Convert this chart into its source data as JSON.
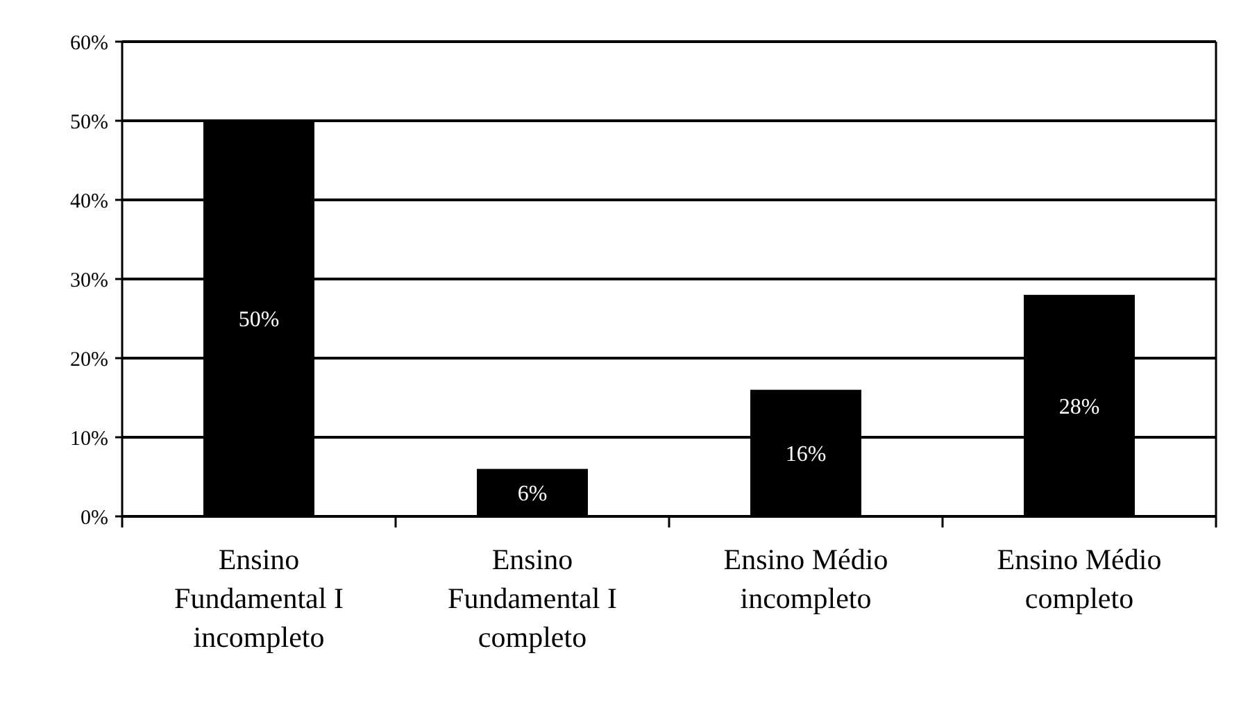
{
  "chart_data": {
    "type": "bar",
    "categories": [
      "Ensino Fundamental I incompleto",
      "Ensino Fundamental I completo",
      "Ensino Médio incompleto",
      "Ensino Médio completo"
    ],
    "values": [
      50,
      6,
      16,
      28
    ],
    "color": "#000000",
    "value_labels": [
      "50%",
      "6%",
      "16%",
      "28%"
    ],
    "ylim": [
      0,
      60
    ],
    "yticks": [
      {
        "value": 0,
        "label": "0%"
      },
      {
        "value": 10,
        "label": "10%"
      },
      {
        "value": 20,
        "label": "20%"
      },
      {
        "value": 30,
        "label": "30%"
      },
      {
        "value": 40,
        "label": "40%"
      },
      {
        "value": 50,
        "label": "50%"
      },
      {
        "value": 60,
        "label": "60%"
      }
    ],
    "grid": "y"
  }
}
